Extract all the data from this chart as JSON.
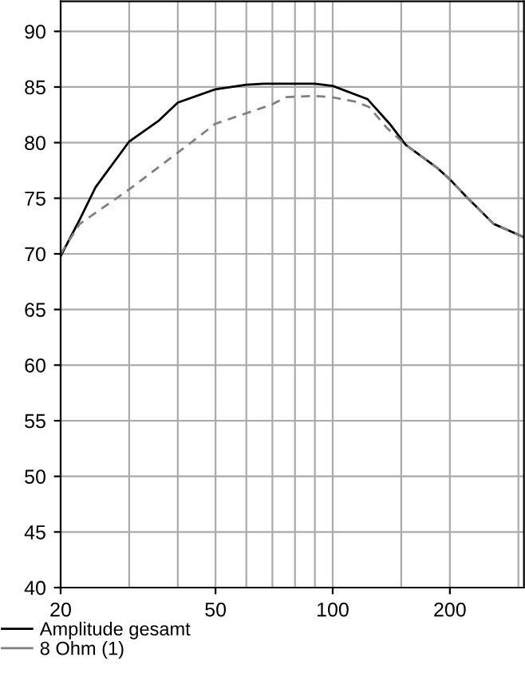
{
  "chart_data": {
    "type": "line",
    "log": "x",
    "xlim": [
      20,
      310
    ],
    "ylim": [
      40,
      92.7
    ],
    "xticks": [
      20,
      {
        "value": 30,
        "label": null
      },
      {
        "value": 40,
        "label": null
      },
      50,
      {
        "value": 60,
        "label": null
      },
      {
        "value": 70,
        "label": null
      },
      {
        "value": 80,
        "label": null
      },
      {
        "value": 90,
        "label": null
      },
      100,
      {
        "value": 150,
        "label": null
      },
      200,
      {
        "value": 300,
        "label": null
      }
    ],
    "yticks": [
      40,
      45,
      50,
      55,
      60,
      65,
      70,
      75,
      80,
      85,
      90
    ],
    "grid": true,
    "legend": "bottom left",
    "marker": "none",
    "series": [
      {
        "name": "Amplitude gesamt",
        "color": "#000000",
        "line_style": "solid",
        "x": [
          20,
          22.4,
          24.6,
          30,
          35.8,
          40,
          50,
          60,
          66.6,
          90,
          100,
          123,
          140,
          154,
          186,
          200,
          221,
          259,
          310
        ],
        "values": [
          69.8,
          73.1,
          76.0,
          80.1,
          82.0,
          83.6,
          84.8,
          85.2,
          85.3,
          85.3,
          85.1,
          83.9,
          81.7,
          79.8,
          77.7,
          76.7,
          75.1,
          72.7,
          71.5
        ]
      },
      {
        "name": "8 Ohm (1)",
        "color": "#808080",
        "line_style": "dashed",
        "x": [
          20,
          22.4,
          30,
          40,
          50,
          69.5,
          76.1,
          90,
          99,
          114,
          124,
          138,
          154,
          186,
          200,
          221,
          259,
          310
        ],
        "values": [
          70.0,
          72.7,
          75.8,
          79.1,
          81.7,
          83.4,
          84.1,
          84.2,
          84.1,
          83.7,
          83.2,
          81.3,
          79.8,
          77.7,
          76.7,
          75.1,
          72.7,
          71.5
        ]
      }
    ]
  }
}
